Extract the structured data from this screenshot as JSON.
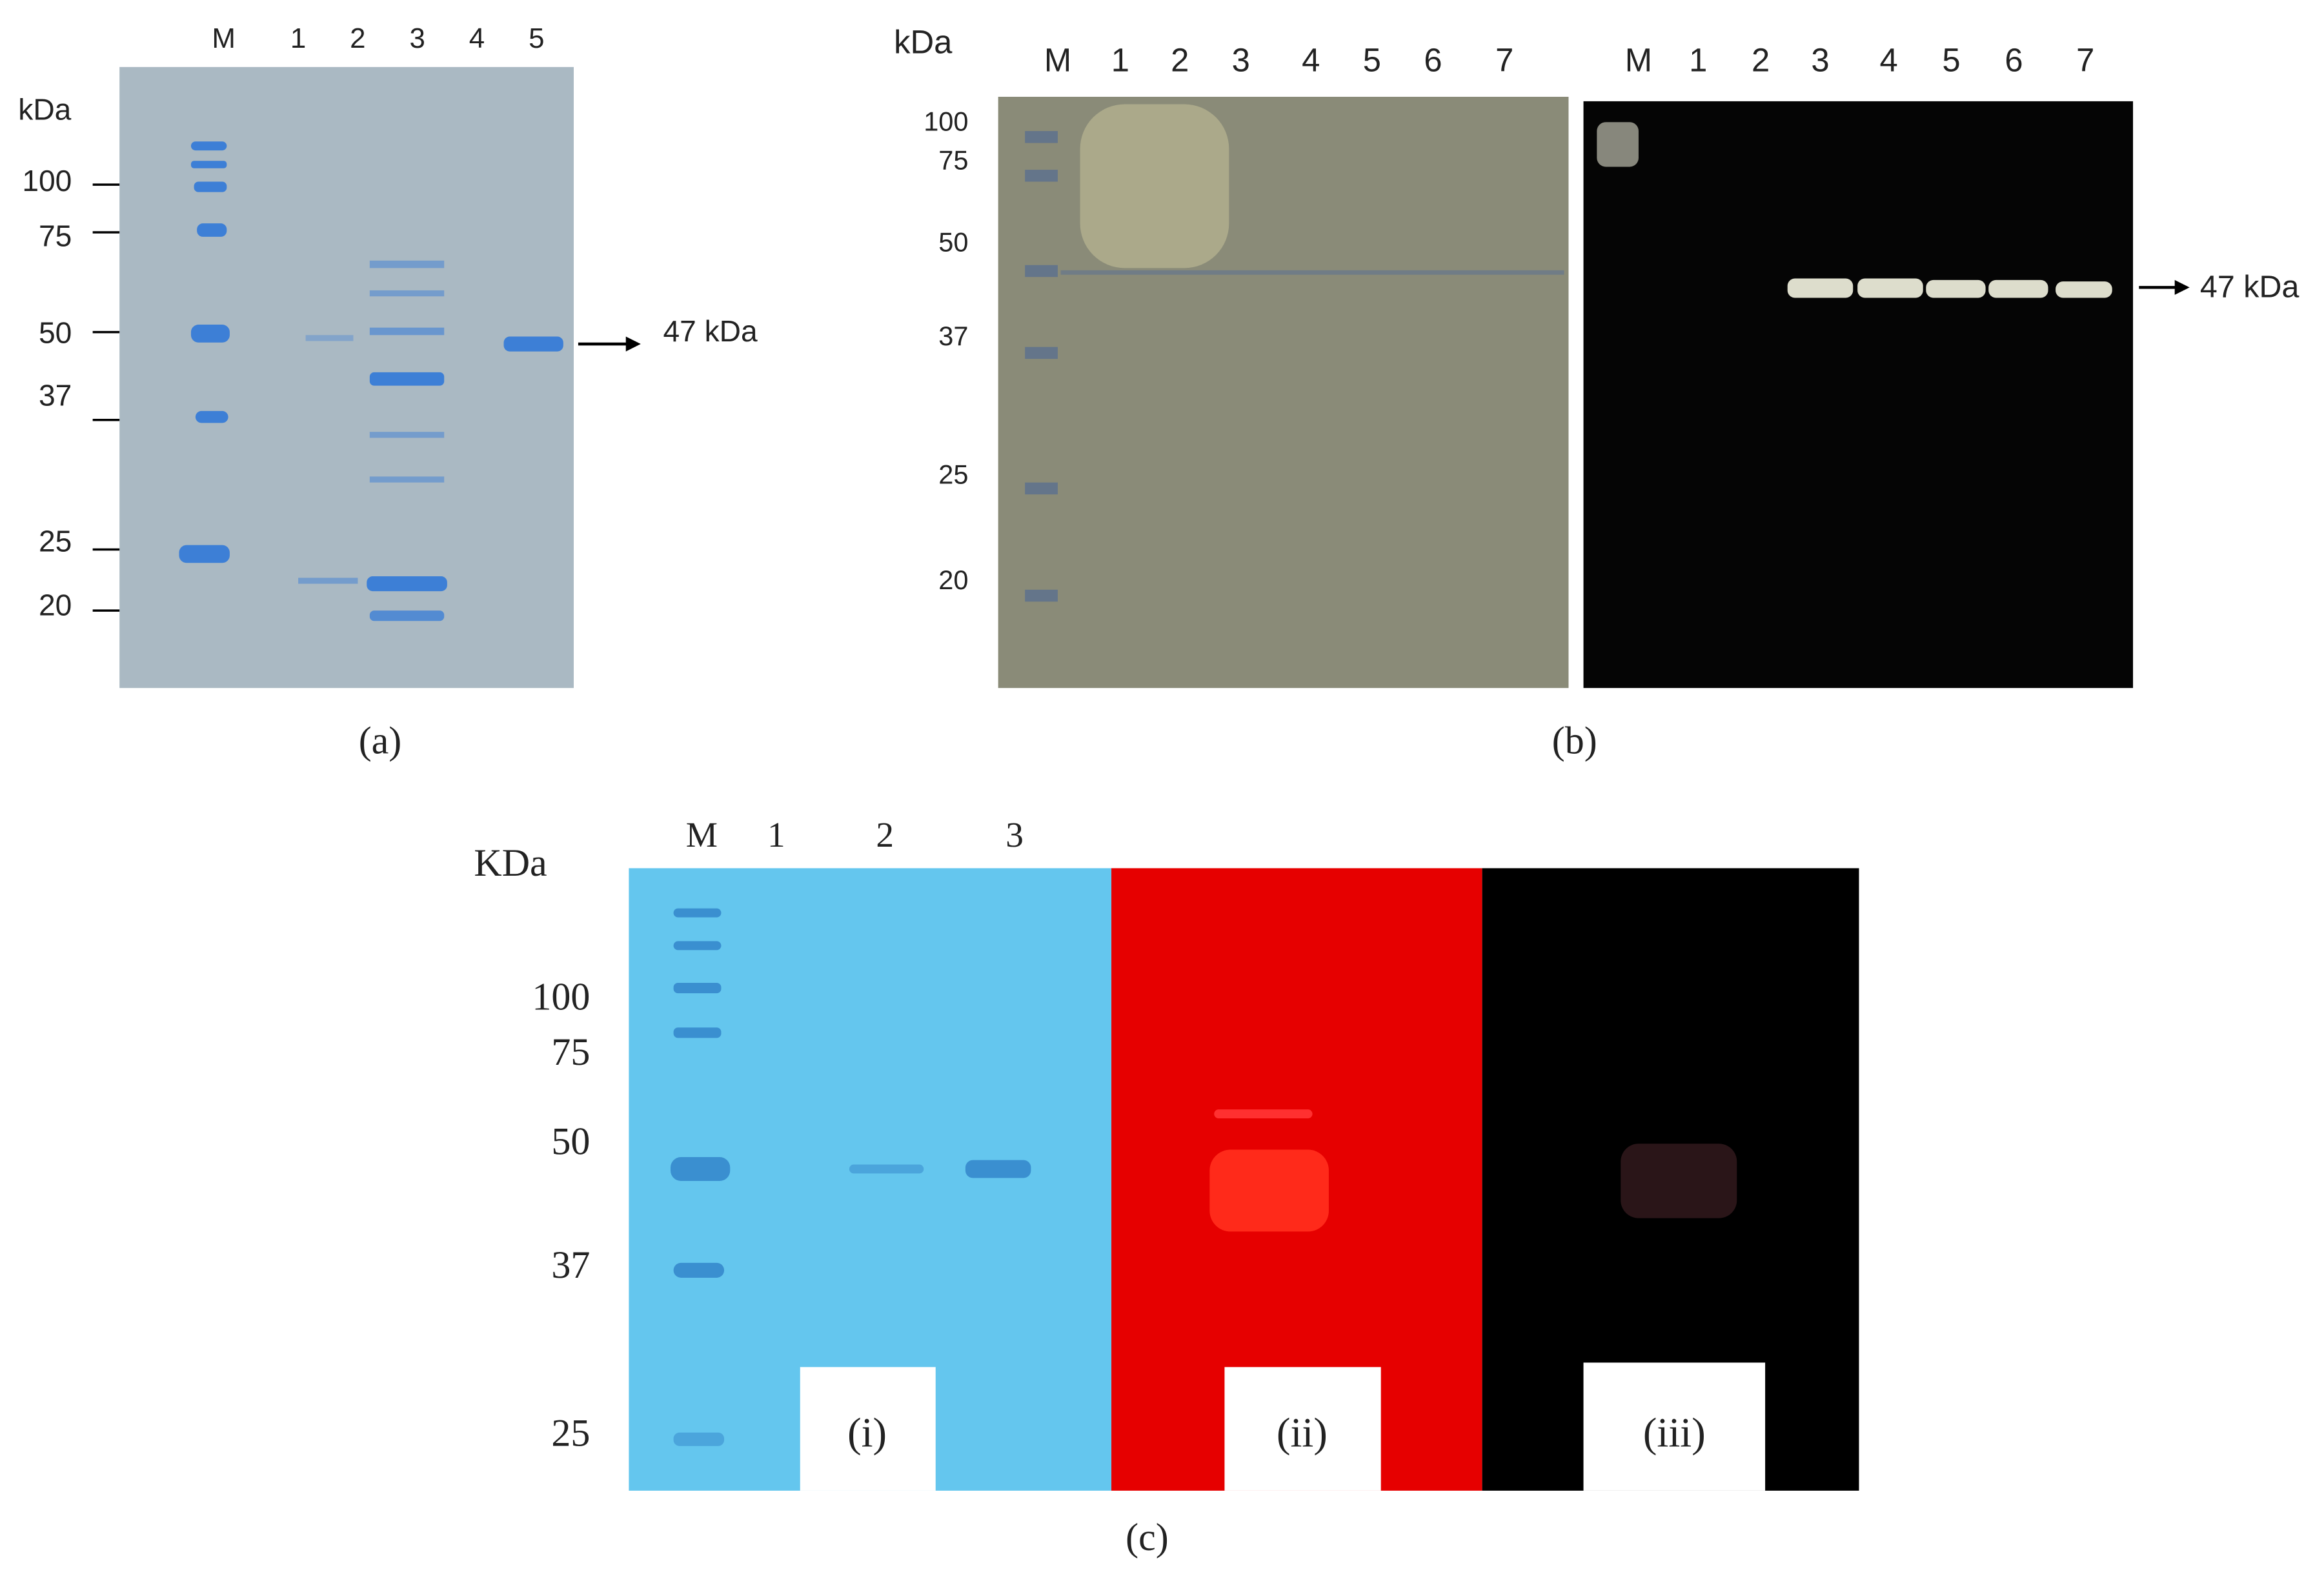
{
  "panels": {
    "a": {
      "unit": "kDa",
      "lanes": [
        "M",
        "1",
        "2",
        "3",
        "4",
        "5"
      ],
      "markers": [
        "100",
        "75",
        "50",
        "37",
        "25",
        "20"
      ],
      "annotation": "47 kDa",
      "caption": "(a)"
    },
    "b": {
      "unit": "kDa",
      "lanes_left": [
        "M",
        "1",
        "2",
        "3",
        "4",
        "5",
        "6",
        "7"
      ],
      "lanes_right": [
        "M",
        "1",
        "2",
        "3",
        "4",
        "5",
        "6",
        "7"
      ],
      "markers": [
        "100",
        "75",
        "50",
        "37",
        "25",
        "20"
      ],
      "annotation": "47 kDa",
      "caption": "(b)"
    },
    "c": {
      "unit": "KDa",
      "lanes": [
        "M",
        "1",
        "2",
        "3"
      ],
      "markers": [
        "100",
        "75",
        "50",
        "37",
        "25"
      ],
      "sublabels": [
        "(i)",
        "(ii)",
        "(iii)"
      ],
      "caption": "(c)"
    }
  }
}
